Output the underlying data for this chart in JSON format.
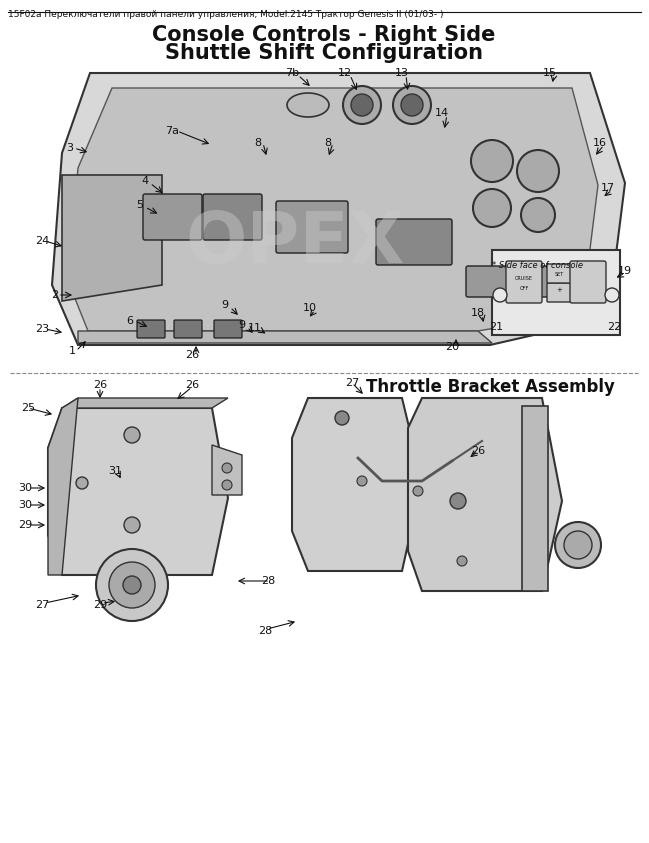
{
  "bg_color": "#f0f0f0",
  "page_bg": "#ffffff",
  "header_text": "15F02a Переключатели правой панели управления, Model:2145 Трактор Genesis II (01/03- )",
  "title_line1": "Console Controls - Right Side",
  "title_line2": "Shuttle Shift Configuration",
  "throttle_label": "Throttle Bracket Assembly",
  "side_face_label": "* Side face of console",
  "watermark": "OPEX",
  "fig_width": 6.49,
  "fig_height": 8.43,
  "dpi": 100
}
